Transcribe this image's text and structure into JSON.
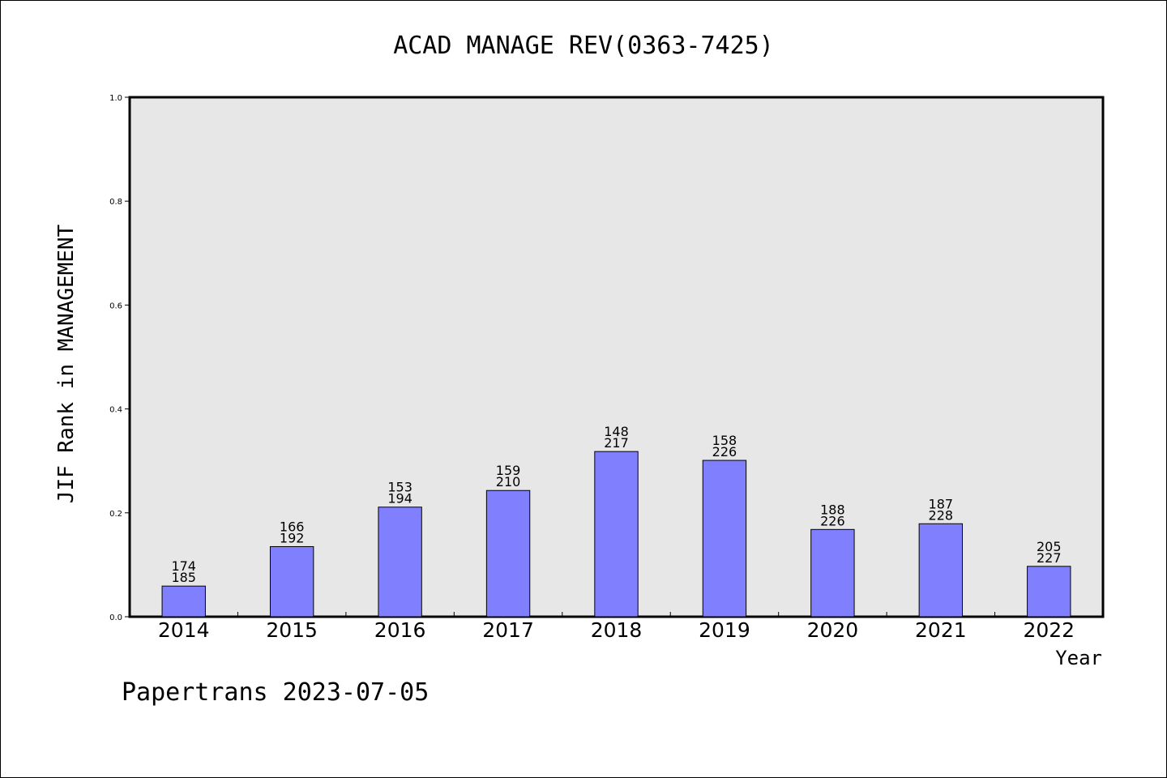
{
  "chart_data": {
    "type": "bar",
    "title": "ACAD MANAGE REV(0363-7425)",
    "xlabel": "Year",
    "ylabel": "JIF Rank in MANAGEMENT",
    "ylim": [
      0,
      1.0
    ],
    "yticks": [
      "0.0",
      "0.2",
      "0.4",
      "0.6",
      "0.8",
      "1.0"
    ],
    "categories": [
      "2014",
      "2015",
      "2016",
      "2017",
      "2018",
      "2019",
      "2020",
      "2021",
      "2022"
    ],
    "values": [
      0.059,
      0.135,
      0.211,
      0.243,
      0.318,
      0.301,
      0.168,
      0.179,
      0.097
    ],
    "rank_labels": [
      {
        "rank": "174",
        "total": "185"
      },
      {
        "rank": "166",
        "total": "192"
      },
      {
        "rank": "153",
        "total": "194"
      },
      {
        "rank": "159",
        "total": "210"
      },
      {
        "rank": "148",
        "total": "217"
      },
      {
        "rank": "158",
        "total": "226"
      },
      {
        "rank": "188",
        "total": "226"
      },
      {
        "rank": "187",
        "total": "228"
      },
      {
        "rank": "205",
        "total": "227"
      }
    ],
    "grid": false,
    "bar_color": "#8080ff",
    "plot_background": "#e7e7e7"
  },
  "footer": {
    "text": "Papertrans 2023-07-05"
  }
}
